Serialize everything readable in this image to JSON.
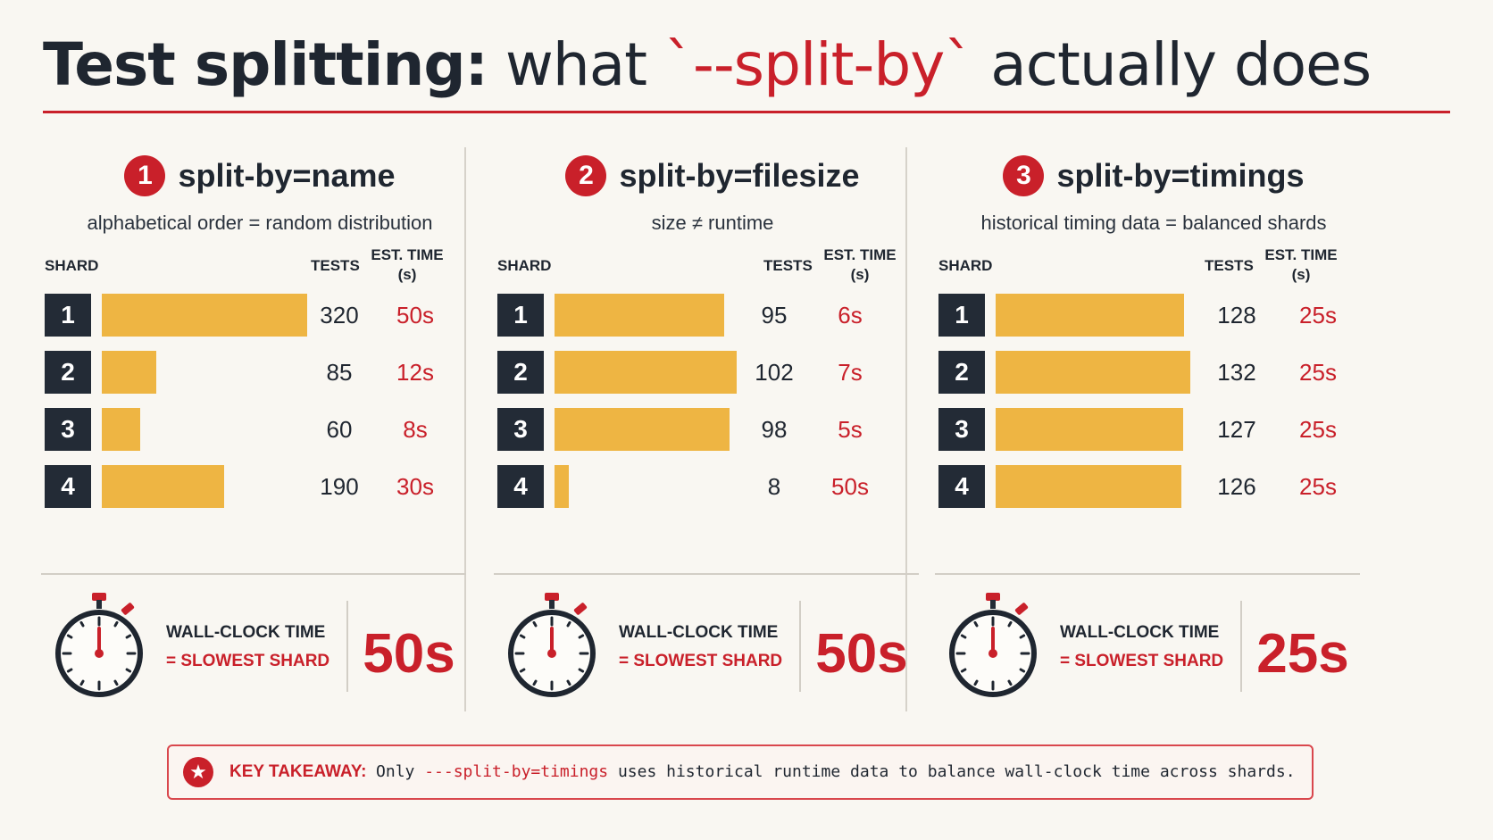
{
  "title": {
    "part1": "Test splitting:",
    "part2": " what ",
    "part3": "`--split-by`",
    "part4": " actually does"
  },
  "colors": {
    "accent": "#c9202a",
    "bar": "#eeb543",
    "shard_box": "#232b36",
    "background": "#f9f7f2"
  },
  "columns": {
    "shard": "SHARD",
    "tests": "TESTS",
    "time_line1": "EST. TIME",
    "time_line2": "(s)"
  },
  "wallclock": {
    "line1": "WALL-CLOCK TIME",
    "line2": "= SLOWEST SHARD",
    "icon": "stopwatch-icon"
  },
  "chart_data": [
    {
      "type": "bar",
      "number": "1",
      "title": "split-by=name",
      "subtitle": "alphabetical order = random distribution",
      "categories": [
        "1",
        "2",
        "3",
        "4"
      ],
      "series": [
        {
          "name": "TESTS",
          "values": [
            320,
            85,
            60,
            190
          ]
        },
        {
          "name": "EST. TIME (s)",
          "values": [
            50,
            12,
            8,
            30
          ]
        }
      ],
      "time_labels": [
        "50s",
        "12s",
        "8s",
        "30s"
      ],
      "wall_clock": "50s"
    },
    {
      "type": "bar",
      "number": "2",
      "title": "split-by=filesize",
      "subtitle": "size ≠ runtime",
      "categories": [
        "1",
        "2",
        "3",
        "4"
      ],
      "series": [
        {
          "name": "TESTS",
          "values": [
            95,
            102,
            98,
            8
          ]
        },
        {
          "name": "EST. TIME (s)",
          "values": [
            6,
            7,
            5,
            50
          ]
        }
      ],
      "time_labels": [
        "6s",
        "7s",
        "5s",
        "50s"
      ],
      "wall_clock": "50s"
    },
    {
      "type": "bar",
      "number": "3",
      "title": "split-by=timings",
      "subtitle": "historical timing data = balanced shards",
      "categories": [
        "1",
        "2",
        "3",
        "4"
      ],
      "series": [
        {
          "name": "TESTS",
          "values": [
            128,
            132,
            127,
            126
          ]
        },
        {
          "name": "EST. TIME (s)",
          "values": [
            25,
            25,
            25,
            25
          ]
        }
      ],
      "time_labels": [
        "25s",
        "25s",
        "25s",
        "25s"
      ],
      "wall_clock": "25s"
    }
  ],
  "takeaway": {
    "label": "KEY TAKEAWAY:",
    "pre": "Only ",
    "code": "---split-by=timings",
    "post": " uses historical runtime data to balance wall-clock time across shards.",
    "icon": "star-icon"
  }
}
